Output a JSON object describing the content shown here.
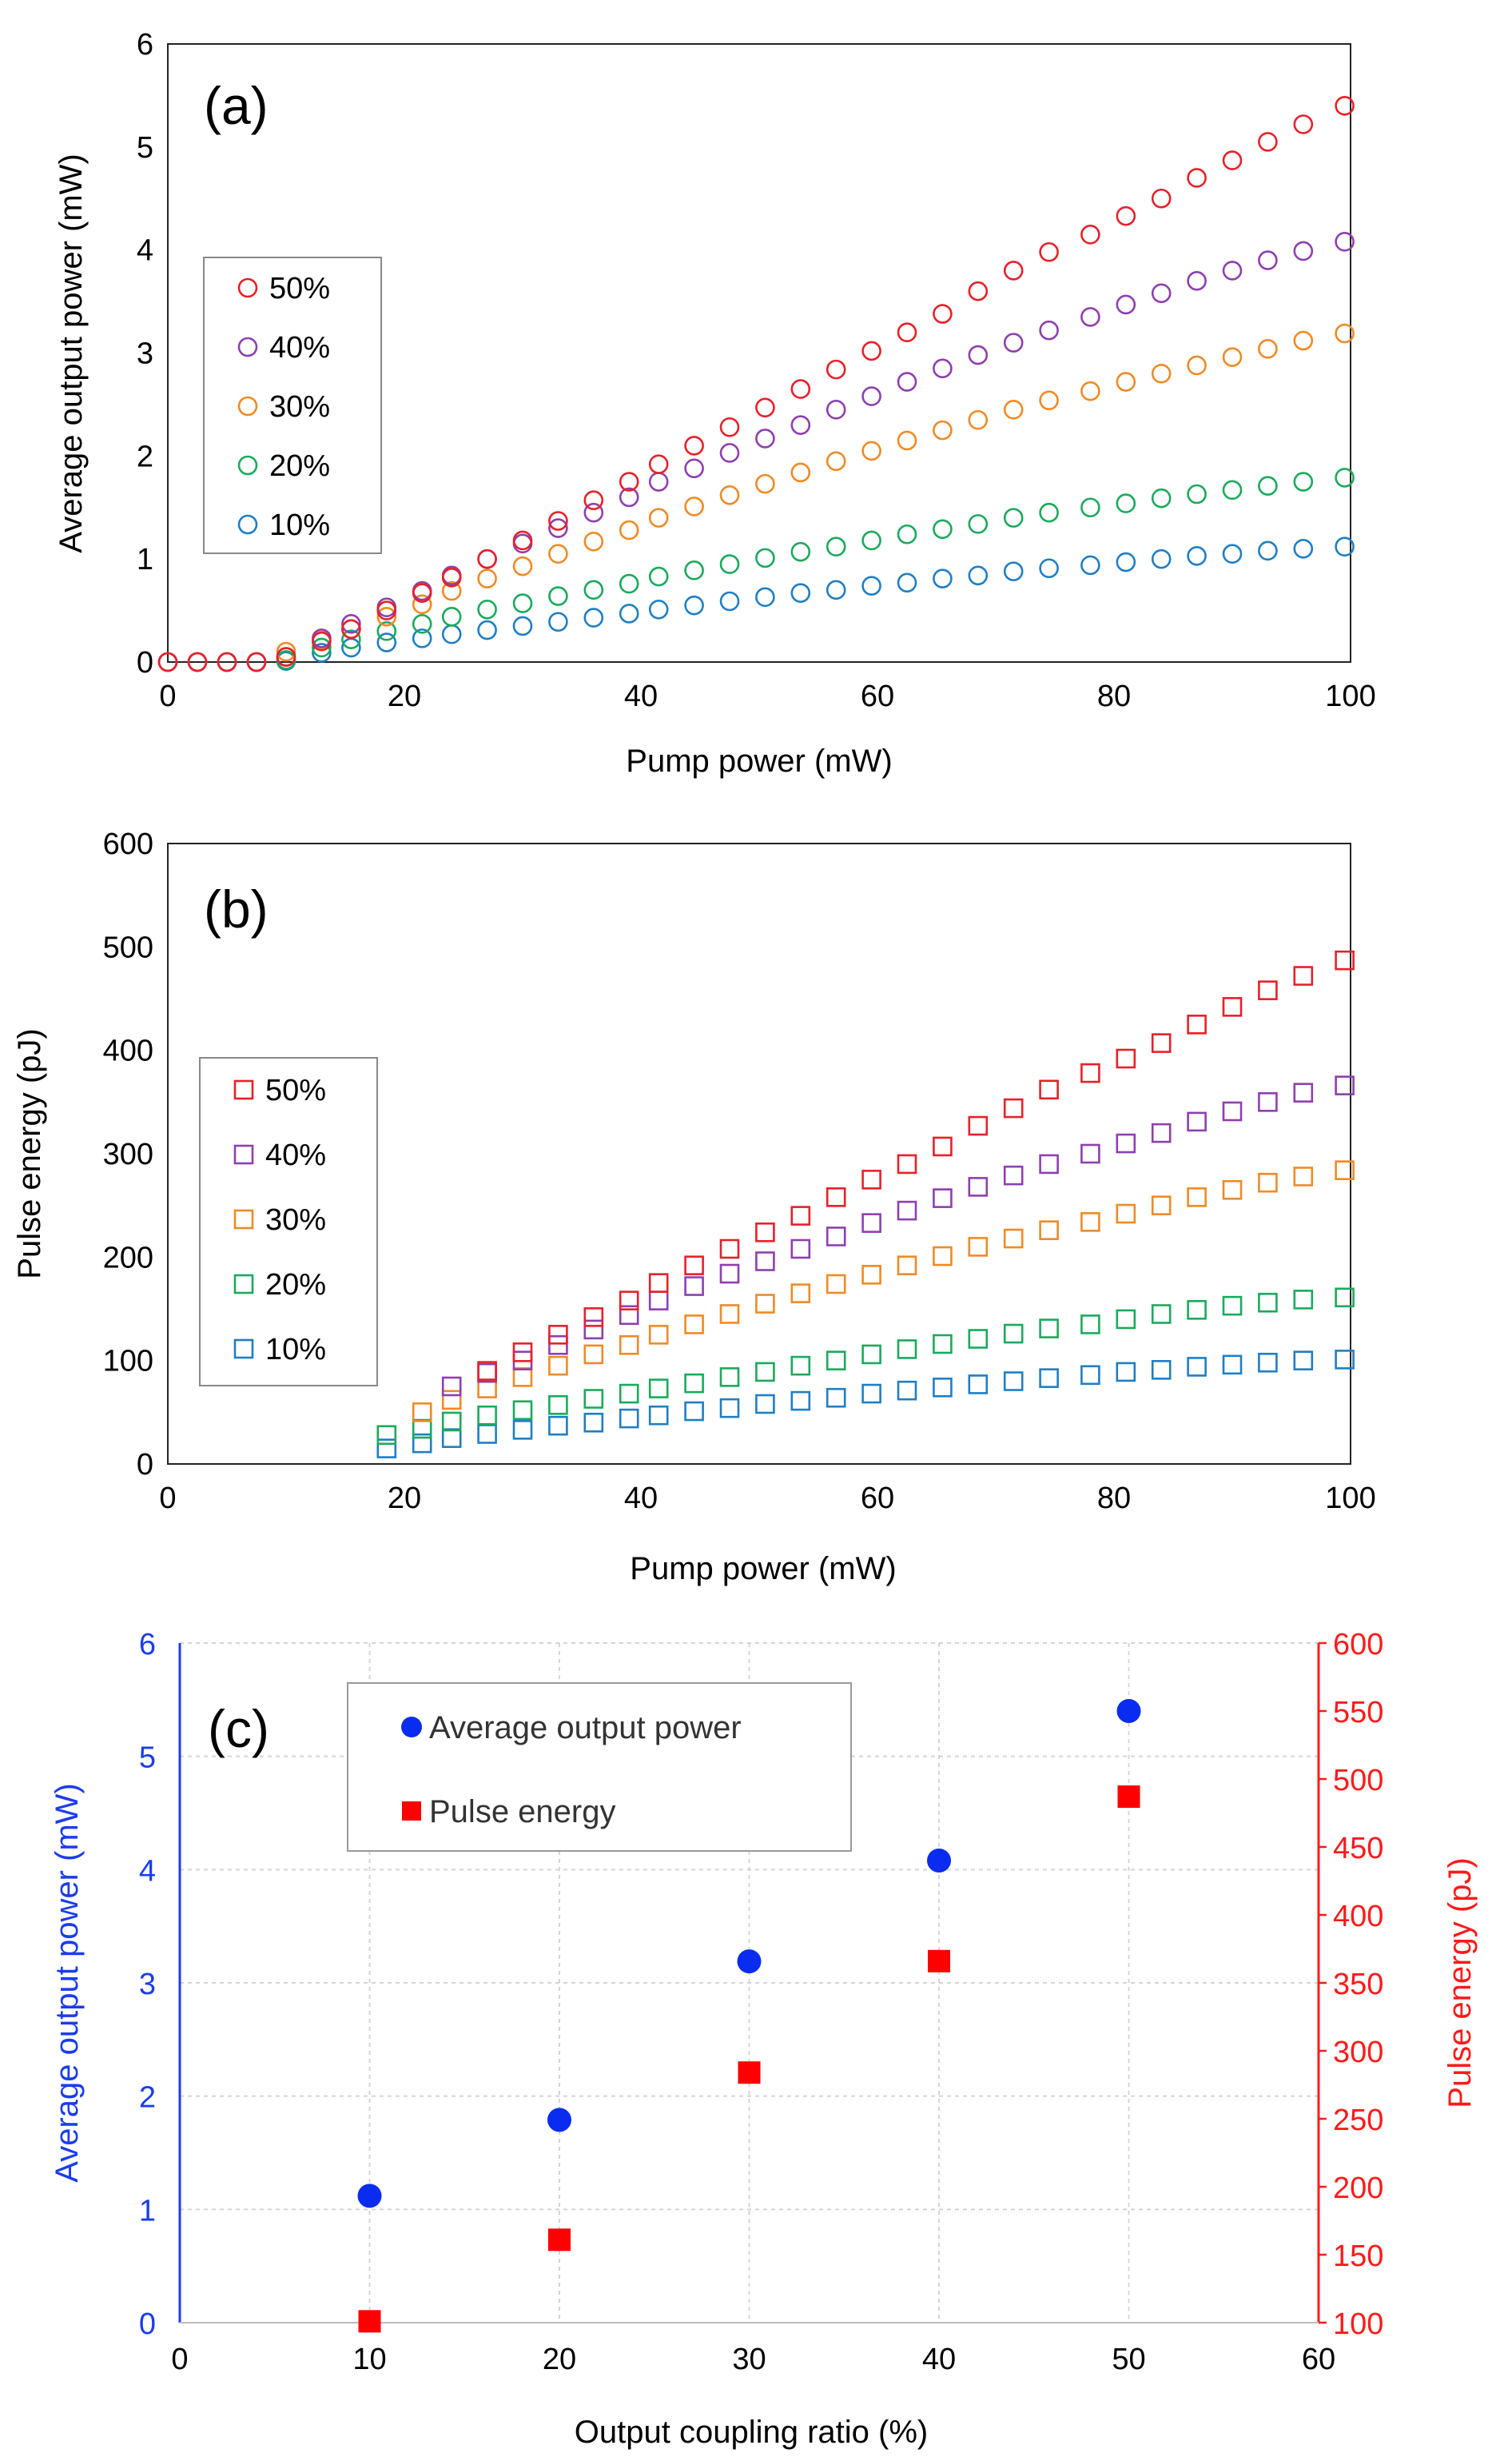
{
  "chart_data": [
    {
      "type": "scatter",
      "panel_label": "(a)",
      "xlabel": "Pump power (mW)",
      "ylabel": "Average output power (mW)",
      "xlim": [
        0,
        100
      ],
      "ylim": [
        0,
        6
      ],
      "xticks": [
        "0",
        "20",
        "40",
        "60",
        "80",
        "100"
      ],
      "yticks": [
        "0",
        "1",
        "2",
        "3",
        "4",
        "5",
        "6"
      ],
      "marker": "circle-open",
      "legend_position": "left-middle",
      "x": [
        0,
        2.5,
        5,
        7.5,
        10,
        13,
        15.5,
        18.5,
        21.5,
        24,
        27,
        30,
        33,
        36,
        39,
        41.5,
        44.5,
        47.5,
        50.5,
        53.5,
        56.5,
        59.5,
        62.5,
        65.5,
        68.5,
        71.5,
        74.5,
        78,
        81,
        84,
        87,
        90,
        93,
        96,
        99.5
      ],
      "series": [
        {
          "name": "50%",
          "color": "#e8202a",
          "start": 0,
          "values": [
            0,
            0,
            0,
            0,
            0.05,
            0.2,
            0.32,
            0.5,
            0.67,
            0.82,
            1.0,
            1.18,
            1.37,
            1.57,
            1.75,
            1.92,
            2.1,
            2.28,
            2.47,
            2.65,
            2.84,
            3.02,
            3.2,
            3.38,
            3.6,
            3.8,
            3.98,
            4.15,
            4.33,
            4.5,
            4.7,
            4.87,
            5.05,
            5.22,
            5.4
          ]
        },
        {
          "name": "40%",
          "color": "#8e3fb0",
          "start": 0,
          "values": [
            0,
            0,
            0,
            0,
            0.05,
            0.23,
            0.37,
            0.53,
            0.69,
            0.84,
            1.0,
            1.15,
            1.3,
            1.45,
            1.6,
            1.75,
            1.88,
            2.03,
            2.17,
            2.3,
            2.45,
            2.58,
            2.72,
            2.85,
            2.98,
            3.1,
            3.22,
            3.35,
            3.47,
            3.58,
            3.7,
            3.8,
            3.9,
            3.99,
            4.08
          ]
        },
        {
          "name": "30%",
          "color": "#f08a24",
          "start": 0,
          "values": [
            0,
            0,
            0,
            0,
            0.1,
            0.21,
            0.32,
            0.44,
            0.56,
            0.69,
            0.81,
            0.93,
            1.05,
            1.17,
            1.28,
            1.4,
            1.51,
            1.62,
            1.73,
            1.84,
            1.95,
            2.05,
            2.15,
            2.25,
            2.35,
            2.45,
            2.54,
            2.63,
            2.72,
            2.8,
            2.88,
            2.96,
            3.04,
            3.12,
            3.19
          ]
        },
        {
          "name": "20%",
          "color": "#1aaa5c",
          "start": 0,
          "values": [
            0,
            0,
            0,
            0,
            0.02,
            0.14,
            0.22,
            0.3,
            0.37,
            0.44,
            0.51,
            0.57,
            0.64,
            0.7,
            0.76,
            0.83,
            0.89,
            0.95,
            1.01,
            1.07,
            1.12,
            1.18,
            1.24,
            1.29,
            1.34,
            1.4,
            1.45,
            1.5,
            1.54,
            1.59,
            1.63,
            1.67,
            1.71,
            1.75,
            1.79
          ]
        },
        {
          "name": "10%",
          "color": "#1f7ec4",
          "start": 0,
          "values": [
            0,
            0,
            0,
            0,
            0.01,
            0.09,
            0.14,
            0.19,
            0.23,
            0.27,
            0.31,
            0.35,
            0.39,
            0.43,
            0.47,
            0.51,
            0.55,
            0.59,
            0.63,
            0.67,
            0.7,
            0.74,
            0.77,
            0.81,
            0.84,
            0.88,
            0.91,
            0.94,
            0.97,
            1.0,
            1.03,
            1.05,
            1.08,
            1.1,
            1.12
          ]
        }
      ]
    },
    {
      "type": "scatter",
      "panel_label": "(b)",
      "xlabel": "Pump power (mW)",
      "ylabel": "Pulse energy (pJ)",
      "xlim": [
        0,
        100
      ],
      "ylim": [
        0,
        600
      ],
      "xticks": [
        "0",
        "20",
        "40",
        "60",
        "80",
        "100"
      ],
      "yticks": [
        "0",
        "100",
        "200",
        "300",
        "400",
        "500",
        "600"
      ],
      "marker": "square-open",
      "legend_position": "left-middle",
      "x": [
        18.5,
        21.5,
        24,
        27,
        30,
        33,
        36,
        39,
        41.5,
        44.5,
        47.5,
        50.5,
        53.5,
        56.5,
        59.5,
        62.5,
        65.5,
        68.5,
        71.5,
        74.5,
        78,
        81,
        84,
        87,
        90,
        93,
        96,
        99.5
      ],
      "series": [
        {
          "name": "50%",
          "color": "#e8202a",
          "start": 3,
          "values": [
            90,
            108,
            125,
            142,
            158,
            175,
            192,
            208,
            224,
            240,
            258,
            275,
            290,
            307,
            327,
            344,
            362,
            378,
            392,
            407,
            425,
            442,
            458,
            472,
            487
          ]
        },
        {
          "name": "40%",
          "color": "#8e3fb0",
          "start": 2,
          "values": [
            75,
            88,
            100,
            115,
            130,
            144,
            158,
            172,
            184,
            196,
            208,
            220,
            233,
            245,
            257,
            268,
            279,
            290,
            300,
            310,
            320,
            331,
            341,
            350,
            359,
            366
          ]
        },
        {
          "name": "30%",
          "color": "#f08a24",
          "start": 1,
          "values": [
            50,
            62,
            73,
            84,
            95,
            106,
            115,
            125,
            135,
            145,
            155,
            165,
            174,
            183,
            192,
            201,
            210,
            218,
            226,
            234,
            242,
            250,
            258,
            265,
            272,
            278,
            284
          ]
        },
        {
          "name": "20%",
          "color": "#1aaa5c",
          "start": 0,
          "values": [
            28,
            34,
            41,
            47,
            52,
            57,
            63,
            68,
            73,
            78,
            84,
            89,
            95,
            100,
            106,
            111,
            116,
            121,
            126,
            131,
            135,
            140,
            145,
            149,
            153,
            156,
            159,
            161
          ]
        },
        {
          "name": "10%",
          "color": "#1f7ec4",
          "start": 0,
          "values": [
            15,
            20,
            25,
            29,
            33,
            37,
            40,
            44,
            47,
            51,
            54,
            58,
            61,
            64,
            68,
            71,
            74,
            77,
            80,
            83,
            86,
            89,
            91,
            94,
            96,
            98,
            100,
            101
          ]
        }
      ]
    },
    {
      "type": "scatter",
      "panel_label": "(c)",
      "xlabel": "Output coupling ratio (%)",
      "ylabel": "Average output power (mW)",
      "y2label": "Pulse energy (pJ)",
      "xlim": [
        0,
        60
      ],
      "ylim": [
        0,
        6
      ],
      "y2lim": [
        100,
        600
      ],
      "xticks": [
        "0",
        "10",
        "20",
        "30",
        "40",
        "50",
        "60"
      ],
      "yticks": [
        "0",
        "1",
        "2",
        "3",
        "4",
        "5",
        "6"
      ],
      "y2ticks": [
        "100",
        "150",
        "200",
        "250",
        "300",
        "350",
        "400",
        "450",
        "500",
        "550",
        "600"
      ],
      "grid": true,
      "legend_position": "top-left",
      "x": [
        10,
        20,
        30,
        40,
        50
      ],
      "series": [
        {
          "name": "Average output power",
          "color": "#0a2cf0",
          "marker": "circle-filled",
          "axis": "left",
          "values": [
            1.12,
            1.79,
            3.19,
            4.08,
            5.4
          ]
        },
        {
          "name": "Pulse energy",
          "color": "#ff0000",
          "marker": "square-filled",
          "axis": "right",
          "values": [
            101,
            161,
            284,
            366,
            487
          ]
        }
      ]
    }
  ]
}
